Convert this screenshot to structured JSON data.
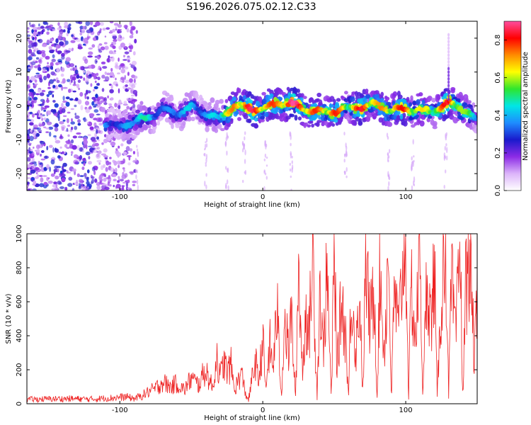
{
  "title": "S196.2026.075.02.12.C33",
  "chart_data": [
    {
      "type": "heatmap",
      "title": "S196.2026.075.02.12.C33",
      "xlabel": "Height of straight line (km)",
      "ylabel": "Frequency (Hz)",
      "xlim": [
        -165,
        150
      ],
      "ylim": [
        -25,
        25
      ],
      "xticks": [
        -100,
        0,
        100
      ],
      "yticks": [
        -20,
        -10,
        0,
        10,
        20
      ],
      "colorbar": {
        "label": "Normalized spectral amplitude",
        "range": [
          0.0,
          0.9
        ],
        "ticks": [
          0.0,
          0.2,
          0.4,
          0.6,
          0.8
        ],
        "tick_labels": [
          "0.0",
          "0.2",
          "0.4",
          "0.6",
          "0.8"
        ],
        "colors": [
          "#ffffff",
          "#dcb4fa",
          "#8c2be6",
          "#1a1acc",
          "#1e8cff",
          "#00e6e6",
          "#2ee62e",
          "#ffff00",
          "#ff8c00",
          "#ff0000",
          "#ff4c9e"
        ]
      },
      "noise_band_km": [
        -165,
        -88
      ],
      "ridge": {
        "height_km": [
          -110,
          -100,
          -90,
          -80,
          -70,
          -60,
          -50,
          -40,
          -30,
          -20,
          -10,
          0,
          10,
          20,
          30,
          40,
          50,
          60,
          70,
          80,
          90,
          100,
          110,
          120,
          130,
          140,
          150
        ],
        "frequency_hz": [
          -6,
          -7,
          -5,
          -3,
          0,
          -2,
          -1,
          -3,
          -4,
          1,
          0,
          -1,
          0,
          0,
          -1,
          -1,
          -1,
          -1,
          -1,
          0,
          -1,
          0,
          -1,
          -2,
          0,
          -1,
          -4
        ],
        "amplitude": [
          0.35,
          0.3,
          0.45,
          0.45,
          0.3,
          0.4,
          0.4,
          0.35,
          0.5,
          0.7,
          0.8,
          0.75,
          0.7,
          0.85,
          0.75,
          0.7,
          0.75,
          0.6,
          0.8,
          0.65,
          0.7,
          0.75,
          0.6,
          0.6,
          0.8,
          0.55,
          0.45
        ]
      }
    },
    {
      "type": "line",
      "xlabel": "Height of straight line (km)",
      "ylabel": "SNR (10 * v/v)",
      "xlim": [
        -165,
        150
      ],
      "ylim": [
        0,
        1000
      ],
      "xticks": [
        -100,
        0,
        100
      ],
      "yticks": [
        0,
        200,
        400,
        600,
        800,
        1000
      ],
      "color": "#ee2222",
      "series": [
        {
          "name": "SNR",
          "x": [
            -165,
            -150,
            -135,
            -120,
            -105,
            -95,
            -90,
            -85,
            -80,
            -75,
            -70,
            -65,
            -60,
            -55,
            -50,
            -45,
            -40,
            -35,
            -32,
            -30,
            -27,
            -25,
            -22,
            -20,
            -15,
            -12,
            -10,
            -7,
            -5,
            -3,
            0,
            2,
            5,
            7,
            10,
            13,
            15,
            18,
            20,
            23,
            25,
            28,
            30,
            32,
            35,
            38,
            40,
            42,
            45,
            48,
            50,
            52,
            55,
            58,
            60,
            62,
            65,
            68,
            70,
            72,
            75,
            78,
            80,
            82,
            85,
            88,
            90,
            92,
            95,
            98,
            100,
            102,
            104,
            107,
            110,
            112,
            115,
            118,
            120,
            122,
            125,
            128,
            130,
            132,
            135,
            138,
            140,
            142,
            145,
            148,
            150
          ],
          "y": [
            25,
            28,
            30,
            27,
            35,
            40,
            30,
            45,
            70,
            90,
            130,
            100,
            120,
            80,
            150,
            110,
            200,
            90,
            290,
            150,
            250,
            180,
            230,
            80,
            180,
            60,
            20,
            170,
            250,
            120,
            380,
            80,
            350,
            200,
            560,
            30,
            500,
            300,
            520,
            20,
            820,
            150,
            600,
            350,
            880,
            40,
            700,
            300,
            760,
            20,
            950,
            200,
            620,
            400,
            30,
            720,
            300,
            640,
            20,
            860,
            450,
            700,
            40,
            780,
            300,
            900,
            20,
            680,
            420,
            830,
            1000,
            30,
            700,
            350,
            950,
            20,
            800,
            420,
            880,
            30,
            650,
            950,
            40,
            720,
            380,
            920,
            20,
            700,
            900,
            250,
            600
          ]
        }
      ]
    }
  ]
}
